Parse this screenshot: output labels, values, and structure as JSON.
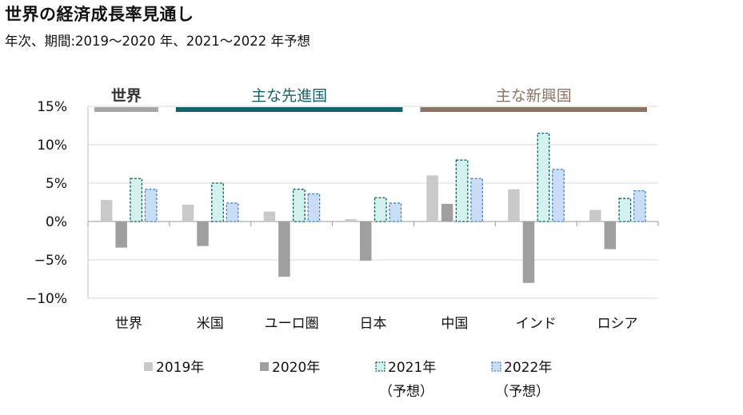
{
  "title": "世界の経済成長率見通し",
  "subtitle": "年次、期間:2019～2020 年、2021～2022 年予想",
  "chart_data": {
    "type": "bar",
    "categories": [
      "世界",
      "米国",
      "ユーロ圏",
      "日本",
      "中国",
      "インド",
      "ロシア"
    ],
    "groups": [
      {
        "label": "世界",
        "categories": [
          "世界"
        ],
        "color": "#a6a6a6"
      },
      {
        "label": "主な先進国",
        "categories": [
          "米国",
          "ユーロ圏",
          "日本"
        ],
        "color": "#17636b"
      },
      {
        "label": "主な新興国",
        "categories": [
          "中国",
          "インド",
          "ロシア"
        ],
        "color": "#8c7566"
      }
    ],
    "series": [
      {
        "name": "2019年",
        "sub": "",
        "values": [
          2.8,
          2.2,
          1.3,
          0.3,
          6.0,
          4.2,
          1.5
        ],
        "fill": "#c9c9c9",
        "stroke": "none",
        "dashed": false
      },
      {
        "name": "2020年",
        "sub": "",
        "values": [
          -3.4,
          -3.2,
          -7.2,
          -5.1,
          2.3,
          -8.0,
          -3.6
        ],
        "fill": "#9f9f9f",
        "stroke": "none",
        "dashed": false
      },
      {
        "name": "2021年",
        "sub": "（予想）",
        "values": [
          5.6,
          5.0,
          4.2,
          3.1,
          8.0,
          11.5,
          3.0
        ],
        "fill": "#d3f2ef",
        "stroke": "#0f5e5c",
        "dashed": true
      },
      {
        "name": "2022年",
        "sub": "（予想）",
        "values": [
          4.2,
          2.4,
          3.6,
          2.4,
          5.6,
          6.8,
          4.0
        ],
        "fill": "#c9ddf6",
        "stroke": "#3f86c9",
        "dashed": true
      }
    ],
    "ylim": [
      -10,
      15
    ],
    "yticks": [
      15,
      10,
      5,
      0,
      -5,
      -10
    ],
    "ytick_labels": [
      "15%",
      "10%",
      "5%",
      "0%",
      "−5%",
      "−10%"
    ],
    "xlabel": "",
    "ylabel": "",
    "grid": true,
    "legend": "bottom"
  }
}
